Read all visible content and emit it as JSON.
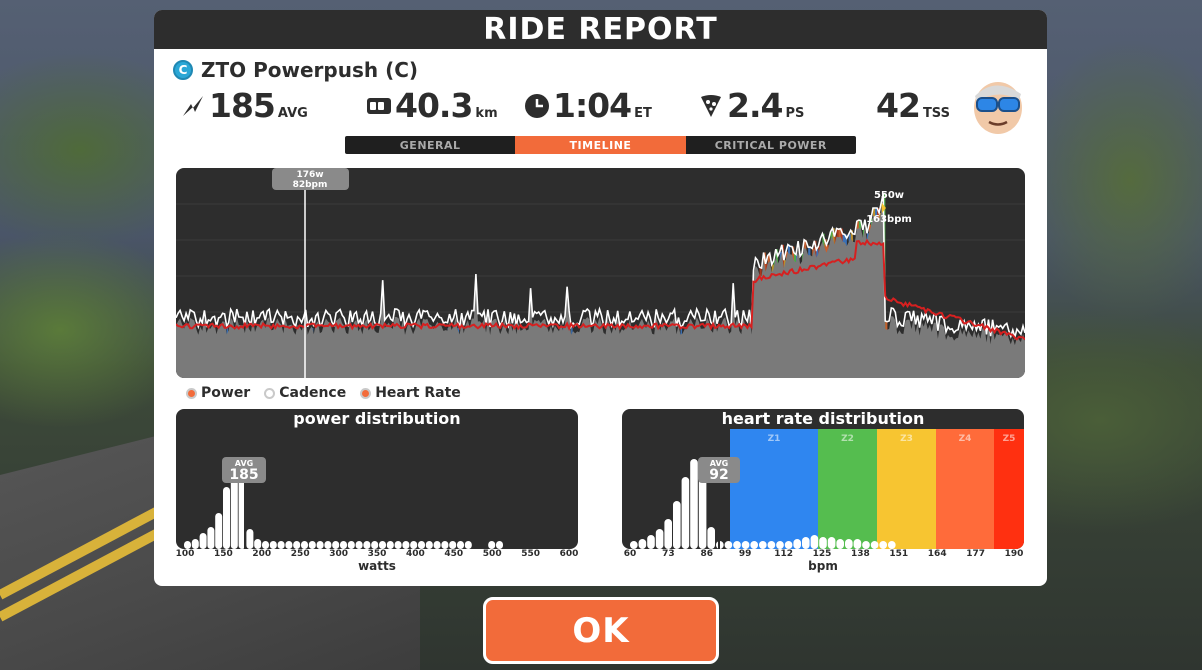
{
  "header": {
    "title": "RIDE REPORT"
  },
  "route": {
    "category": "C",
    "name": "ZTO Powerpush (C)"
  },
  "stats": {
    "power": {
      "value": "185",
      "unit": "AVG"
    },
    "distance": {
      "value": "40.3",
      "unit": "km"
    },
    "time": {
      "value": "1:04",
      "unit": "ET"
    },
    "pizza": {
      "value": "2.4",
      "unit": "PS"
    },
    "tss": {
      "value": "42",
      "unit": "TSS"
    }
  },
  "tabs": [
    {
      "label": "GENERAL",
      "active": false
    },
    {
      "label": "TIMELINE",
      "active": true
    },
    {
      "label": "CRITICAL POWER",
      "active": false
    }
  ],
  "timeline": {
    "cursor": {
      "power": "176w",
      "hr": "82bpm"
    },
    "peak": {
      "power": "550w",
      "hr": "163bpm"
    }
  },
  "legend": {
    "power": "Power",
    "cadence": "Cadence",
    "heart_rate": "Heart Rate"
  },
  "power_distribution": {
    "title": "power distribution",
    "avg_label": "AVG",
    "avg_value": "185",
    "x_label": "watts",
    "ticks": [
      "100",
      "150",
      "200",
      "250",
      "300",
      "350",
      "400",
      "450",
      "500",
      "550",
      "600"
    ]
  },
  "hr_distribution": {
    "title": "heart rate distribution",
    "avg_label": "AVG",
    "avg_value": "92",
    "x_label": "bpm",
    "ticks": [
      "60",
      "73",
      "86",
      "99",
      "112",
      "125",
      "138",
      "151",
      "164",
      "177",
      "190"
    ],
    "zones": [
      {
        "label": "Z1",
        "color": "#2f86f0"
      },
      {
        "label": "Z2",
        "color": "#55bd4f"
      },
      {
        "label": "Z3",
        "color": "#f7c531"
      },
      {
        "label": "Z4",
        "color": "#ff6b3a"
      },
      {
        "label": "Z5",
        "color": "#ff3010"
      }
    ]
  },
  "ok_button": {
    "label": "OK"
  },
  "colors": {
    "accent": "#f26b3a",
    "panel_dark": "#2d2d2d",
    "hr_line": "#d62020"
  }
}
